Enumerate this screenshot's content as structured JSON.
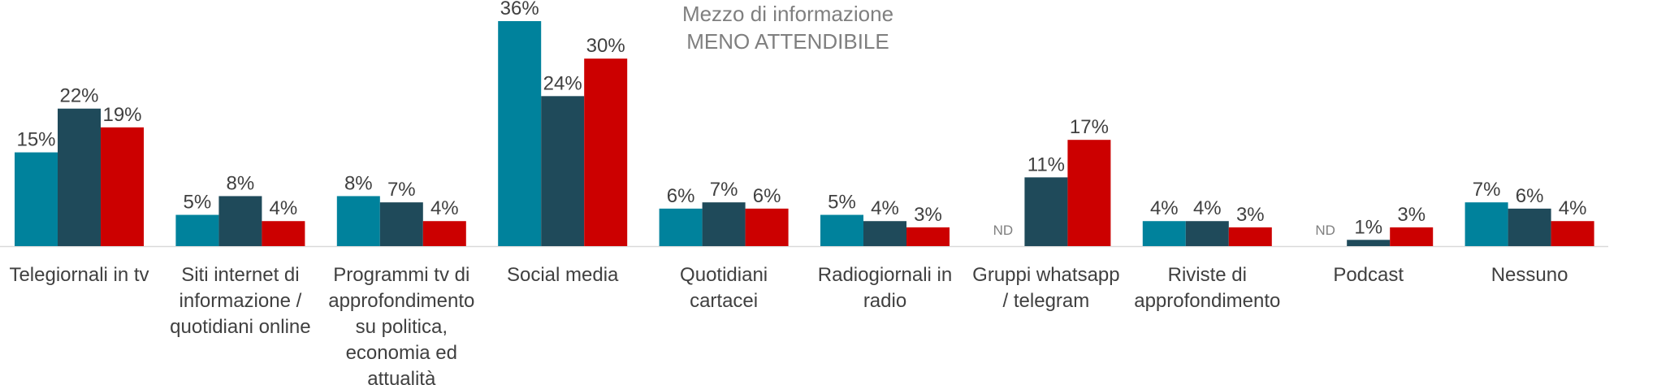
{
  "chart_data": {
    "type": "bar",
    "title": "Mezzo di informazione",
    "subtitle": "MENO ATTENDIBILE",
    "categories": [
      [
        "Telegiornali in tv"
      ],
      [
        "Siti internet di",
        "informazione /",
        "quotidiani online"
      ],
      [
        "Programmi tv di",
        "approfondimento",
        "su politica,",
        "economia ed",
        "attualità"
      ],
      [
        "Social media"
      ],
      [
        "Quotidiani",
        "cartacei"
      ],
      [
        "Radiogiornali in",
        "radio"
      ],
      [
        "Gruppi whatsapp",
        "/ telegram"
      ],
      [
        "Riviste di",
        "approfondimento"
      ],
      [
        "Podcast"
      ],
      [
        "Nessuno"
      ]
    ],
    "series": [
      {
        "color": "#00829c",
        "values": [
          15,
          5,
          8,
          36,
          6,
          5,
          null,
          4,
          null,
          7
        ],
        "labels": [
          "15%",
          "5%",
          "8%",
          "36%",
          "6%",
          "5%",
          "ND",
          "4%",
          "ND",
          "7%"
        ]
      },
      {
        "color": "#1f4a5a",
        "values": [
          22,
          8,
          7,
          24,
          7,
          4,
          11,
          4,
          1,
          6
        ],
        "labels": [
          "22%",
          "8%",
          "7%",
          "24%",
          "7%",
          "4%",
          "11%",
          "4%",
          "1%",
          "6%"
        ]
      },
      {
        "color": "#cc0000",
        "values": [
          19,
          4,
          4,
          30,
          6,
          3,
          17,
          3,
          3,
          4
        ],
        "labels": [
          "19%",
          "4%",
          "4%",
          "30%",
          "6%",
          "3%",
          "17%",
          "3%",
          "3%",
          "4%"
        ]
      }
    ],
    "ylim": [
      0,
      36
    ],
    "grid": false,
    "legend": "none"
  }
}
